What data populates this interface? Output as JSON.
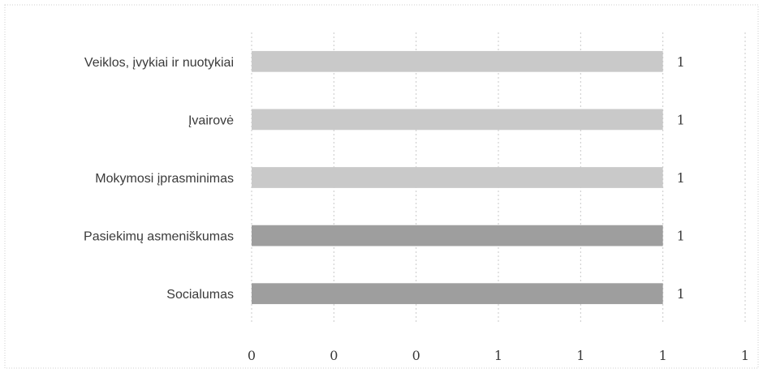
{
  "chart_data": {
    "type": "bar",
    "orientation": "horizontal",
    "categories": [
      "Veiklos, įvykiai ir nuotykiai",
      "Įvairovė",
      "Mokymosi įprasminimas",
      "Pasiekimų asmeniškumas",
      "Socialumas"
    ],
    "values": [
      1,
      1,
      1,
      1,
      1
    ],
    "data_labels": [
      "1",
      "1",
      "1",
      "1",
      "1"
    ],
    "x_tick_labels": [
      "0",
      "0",
      "0",
      "1",
      "1",
      "1",
      "1"
    ],
    "xlim": [
      0,
      1.2
    ],
    "colors": [
      "#c9c9c9",
      "#c9c9c9",
      "#c9c9c9",
      "#9e9e9e",
      "#9e9e9e"
    ],
    "grid": true,
    "title": "",
    "xlabel": "",
    "ylabel": ""
  }
}
